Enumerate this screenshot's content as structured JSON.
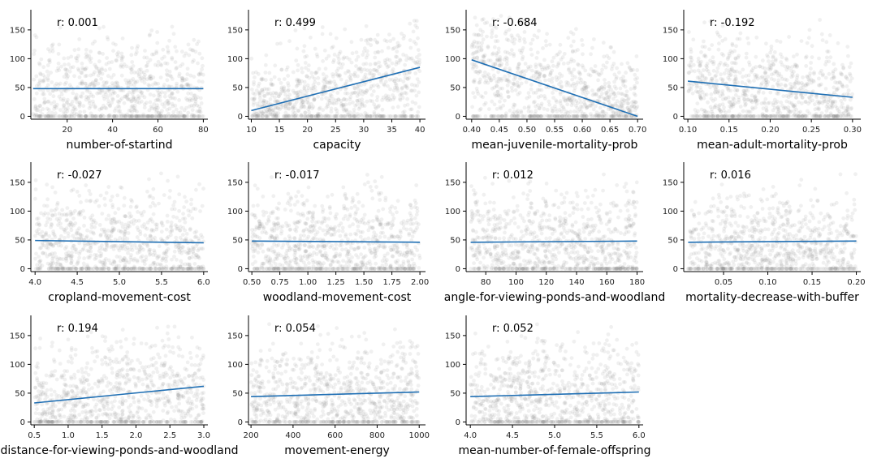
{
  "chart_data": [
    {
      "type": "scatter",
      "xlabel": "number-of-startind",
      "r_label": "r:  0.001",
      "xticks": [
        20,
        40,
        60,
        80
      ],
      "xlim": [
        4,
        82
      ],
      "yticks": [
        0,
        50,
        100,
        150
      ],
      "ylim": [
        -5,
        185
      ],
      "trend": {
        "x": [
          5,
          80
        ],
        "y": [
          48,
          48
        ]
      },
      "points": {
        "count": 900,
        "x_range": [
          5,
          80
        ],
        "y_max": 170
      },
      "point_color": "#808080",
      "line_color": "#1f6fb4"
    },
    {
      "type": "scatter",
      "xlabel": "capacity",
      "r_label": "r:  0.499",
      "xticks": [
        10,
        15,
        20,
        25,
        30,
        35,
        40
      ],
      "xlim": [
        9.5,
        41
      ],
      "yticks": [
        0,
        50,
        100,
        150
      ],
      "ylim": [
        -5,
        185
      ],
      "trend": {
        "x": [
          10,
          40
        ],
        "y": [
          10,
          85
        ]
      },
      "points": {
        "count": 900,
        "x_range": [
          10,
          40
        ],
        "y_max": 175
      },
      "point_color": "#808080",
      "line_color": "#1f6fb4"
    },
    {
      "type": "scatter",
      "xlabel": "mean-juvenile-mortality-prob",
      "r_label": "r: -0.684",
      "xticks": [
        0.4,
        0.45,
        0.5,
        0.55,
        0.6,
        0.65,
        0.7
      ],
      "xlim": [
        0.39,
        0.71
      ],
      "yticks": [
        0,
        50,
        100,
        150
      ],
      "ylim": [
        -5,
        185
      ],
      "trend": {
        "x": [
          0.4,
          0.7
        ],
        "y": [
          98,
          0
        ]
      },
      "points": {
        "count": 900,
        "x_range": [
          0.4,
          0.7
        ],
        "y_max": 175
      },
      "point_color": "#808080",
      "line_color": "#1f6fb4"
    },
    {
      "type": "scatter",
      "xlabel": "mean-adult-mortality-prob",
      "r_label": "r: -0.192",
      "xticks": [
        0.1,
        0.15,
        0.2,
        0.25,
        0.3
      ],
      "xlim": [
        0.095,
        0.31
      ],
      "yticks": [
        0,
        50,
        100,
        150
      ],
      "ylim": [
        -5,
        185
      ],
      "trend": {
        "x": [
          0.1,
          0.3
        ],
        "y": [
          61,
          33
        ]
      },
      "points": {
        "count": 900,
        "x_range": [
          0.1,
          0.3
        ],
        "y_max": 170
      },
      "point_color": "#808080",
      "line_color": "#1f6fb4"
    },
    {
      "type": "scatter",
      "xlabel": "cropland-movement-cost",
      "r_label": "r: -0.027",
      "xticks": [
        4.0,
        4.5,
        5.0,
        5.5,
        6.0
      ],
      "xlim": [
        3.95,
        6.05
      ],
      "yticks": [
        0,
        50,
        100,
        150
      ],
      "ylim": [
        -5,
        185
      ],
      "trend": {
        "x": [
          4.0,
          6.0
        ],
        "y": [
          49,
          45
        ]
      },
      "points": {
        "count": 900,
        "x_range": [
          4.0,
          6.0
        ],
        "y_max": 170
      },
      "point_color": "#808080",
      "line_color": "#1f6fb4"
    },
    {
      "type": "scatter",
      "xlabel": "woodland-movement-cost",
      "r_label": "r: -0.017",
      "xticks": [
        0.5,
        0.75,
        1.0,
        1.25,
        1.5,
        1.75,
        2.0
      ],
      "xlim": [
        0.47,
        2.05
      ],
      "yticks": [
        0,
        50,
        100,
        150
      ],
      "ylim": [
        -5,
        185
      ],
      "trend": {
        "x": [
          0.5,
          2.0
        ],
        "y": [
          48,
          46
        ]
      },
      "points": {
        "count": 900,
        "x_range": [
          0.5,
          2.0
        ],
        "y_max": 170
      },
      "point_color": "#808080",
      "line_color": "#1f6fb4"
    },
    {
      "type": "scatter",
      "xlabel": "angle-for-viewing-ponds-and-woodland",
      "r_label": "r:  0.012",
      "xticks": [
        80,
        100,
        120,
        140,
        160,
        180
      ],
      "xlim": [
        67,
        184
      ],
      "yticks": [
        0,
        50,
        100,
        150
      ],
      "ylim": [
        -5,
        185
      ],
      "trend": {
        "x": [
          70,
          180
        ],
        "y": [
          46,
          48
        ]
      },
      "points": {
        "count": 900,
        "x_range": [
          70,
          180
        ],
        "y_max": 170
      },
      "point_color": "#808080",
      "line_color": "#1f6fb4"
    },
    {
      "type": "scatter",
      "xlabel": "mortality-decrease-with-buffer",
      "r_label": "r:  0.016",
      "xticks": [
        0.05,
        0.1,
        0.15,
        0.2
      ],
      "xlim": [
        0.005,
        0.205
      ],
      "yticks": [
        0,
        50,
        100,
        150
      ],
      "ylim": [
        -5,
        185
      ],
      "trend": {
        "x": [
          0.01,
          0.2
        ],
        "y": [
          46,
          48
        ]
      },
      "points": {
        "count": 900,
        "x_range": [
          0.01,
          0.2
        ],
        "y_max": 170
      },
      "point_color": "#808080",
      "line_color": "#1f6fb4"
    },
    {
      "type": "scatter",
      "xlabel": "distance-for-viewing-ponds-and-woodland",
      "r_label": "r:  0.194",
      "xticks": [
        0.5,
        1.0,
        1.5,
        2.0,
        2.5,
        3.0
      ],
      "xlim": [
        0.45,
        3.06
      ],
      "yticks": [
        0,
        50,
        100,
        150
      ],
      "ylim": [
        -5,
        185
      ],
      "trend": {
        "x": [
          0.5,
          3.0
        ],
        "y": [
          33,
          62
        ]
      },
      "points": {
        "count": 900,
        "x_range": [
          0.5,
          3.0
        ],
        "y_max": 170
      },
      "point_color": "#808080",
      "line_color": "#1f6fb4"
    },
    {
      "type": "scatter",
      "xlabel": "movement-energy",
      "r_label": "r:  0.054",
      "xticks": [
        200,
        400,
        600,
        800,
        1000
      ],
      "xlim": [
        188,
        1030
      ],
      "yticks": [
        0,
        50,
        100,
        150
      ],
      "ylim": [
        -5,
        185
      ],
      "trend": {
        "x": [
          200,
          1000
        ],
        "y": [
          44,
          52
        ]
      },
      "points": {
        "count": 900,
        "x_range": [
          200,
          1000
        ],
        "y_max": 170
      },
      "point_color": "#808080",
      "line_color": "#1f6fb4"
    },
    {
      "type": "scatter",
      "xlabel": "mean-number-of-female-offspring",
      "r_label": "r:  0.052",
      "xticks": [
        4.0,
        4.5,
        5.0,
        5.5,
        6.0
      ],
      "xlim": [
        3.95,
        6.05
      ],
      "yticks": [
        0,
        50,
        100,
        150
      ],
      "ylim": [
        -5,
        185
      ],
      "trend": {
        "x": [
          4.0,
          6.0
        ],
        "y": [
          44,
          52
        ]
      },
      "points": {
        "count": 900,
        "x_range": [
          4.0,
          6.0
        ],
        "y_max": 170
      },
      "point_color": "#808080",
      "line_color": "#1f6fb4"
    }
  ]
}
